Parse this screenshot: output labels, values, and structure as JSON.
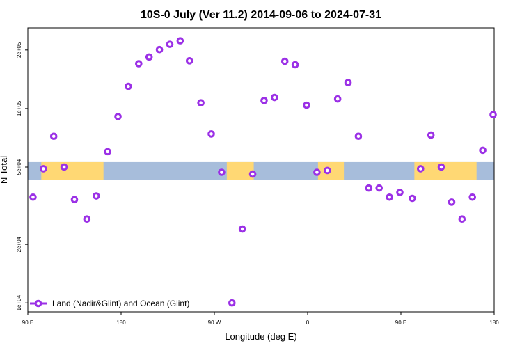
{
  "chart_data": {
    "type": "scatter",
    "title": "10S-0 July (Ver 11.2)   2014-09-06 to 2024-07-31",
    "xlabel": "Longitude (deg E)",
    "ylabel": "N Total",
    "y_scale": "log",
    "x_ticks": [
      "90 E",
      "180",
      "90 W",
      "0",
      "90 E",
      "180"
    ],
    "x_tick_positions": [
      90,
      180,
      270,
      360,
      450,
      540
    ],
    "xlim": [
      90,
      540
    ],
    "y_ticks": [
      "1e+04",
      "2e+04",
      "5e+04",
      "1e+05",
      "2e+05"
    ],
    "y_tick_values": [
      10000,
      20000,
      50000,
      100000,
      200000
    ],
    "ylim": [
      9000,
      260000
    ],
    "band": {
      "y_low": 43000,
      "y_high": 53000,
      "ocean_color": "#a7bddb",
      "land_color": "#ffd874",
      "land_ranges": [
        [
          103,
          163
        ],
        [
          282,
          308
        ],
        [
          370,
          395
        ],
        [
          463,
          523
        ]
      ]
    },
    "series": [
      {
        "name": "Land (Nadir&Glint) and Ocean (Glint)",
        "color": "#9b30e6",
        "marker": "circle-open",
        "x": [
          95,
          105,
          115,
          125,
          135,
          147,
          156,
          167,
          177,
          187,
          197,
          207,
          217,
          227,
          237,
          246,
          257,
          267,
          277,
          287,
          297,
          307,
          318,
          328,
          338,
          348,
          359,
          369,
          379,
          389,
          399,
          409,
          419,
          429,
          439,
          449,
          461,
          469,
          479,
          489,
          499,
          509,
          519,
          529,
          539
        ],
        "y": [
          35000,
          49000,
          72000,
          50000,
          34000,
          27000,
          35500,
          60000,
          91000,
          130000,
          170000,
          184000,
          201000,
          214000,
          223000,
          176000,
          107000,
          74000,
          47000,
          10000,
          24000,
          46000,
          110000,
          114000,
          175000,
          168000,
          104000,
          47000,
          48000,
          112000,
          136000,
          72000,
          39000,
          39000,
          35000,
          37000,
          34500,
          49000,
          73000,
          50000,
          33000,
          27000,
          35000,
          61000,
          93000
        ]
      }
    ],
    "legend": {
      "entries": [
        "Land (Nadir&Glint) and Ocean (Glint)"
      ],
      "position": "bottom-left"
    }
  }
}
